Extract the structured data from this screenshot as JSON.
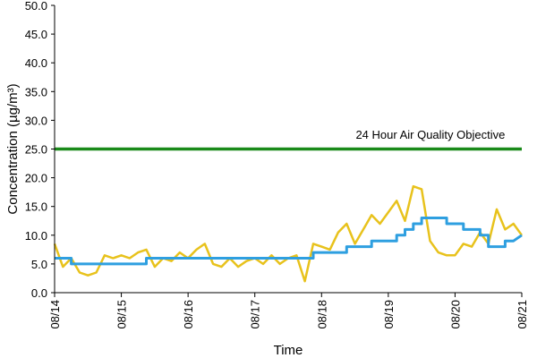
{
  "chart_data": {
    "type": "line",
    "title": "",
    "xlabel": "Time",
    "ylabel": "Concentration (µg/m³)",
    "ylim": [
      0,
      50
    ],
    "yticks": [
      "0.0",
      "5.0",
      "10.0",
      "15.0",
      "20.0",
      "25.0",
      "30.0",
      "35.0",
      "40.0",
      "45.0",
      "50.0"
    ],
    "xlim": [
      "08/14",
      "08/21"
    ],
    "xticks": [
      "08/14",
      "08/15",
      "08/16",
      "08/17",
      "08/18",
      "08/19",
      "08/20",
      "08/21"
    ],
    "grid": false,
    "legend": "none",
    "series": [
      {
        "color": "#e8c21c",
        "x": [
          "08/14 00:00",
          "08/14 03:00",
          "08/14 06:00",
          "08/14 09:00",
          "08/14 12:00",
          "08/14 15:00",
          "08/14 18:00",
          "08/14 21:00",
          "08/15 00:00",
          "08/15 03:00",
          "08/15 06:00",
          "08/15 09:00",
          "08/15 12:00",
          "08/15 15:00",
          "08/15 18:00",
          "08/15 21:00",
          "08/16 00:00",
          "08/16 03:00",
          "08/16 06:00",
          "08/16 09:00",
          "08/16 12:00",
          "08/16 15:00",
          "08/16 18:00",
          "08/16 21:00",
          "08/17 00:00",
          "08/17 03:00",
          "08/17 06:00",
          "08/17 09:00",
          "08/17 12:00",
          "08/17 15:00",
          "08/17 18:00",
          "08/17 21:00",
          "08/18 00:00",
          "08/18 03:00",
          "08/18 06:00",
          "08/18 09:00",
          "08/18 12:00",
          "08/18 15:00",
          "08/18 18:00",
          "08/18 21:00",
          "08/19 00:00",
          "08/19 03:00",
          "08/19 06:00",
          "08/19 09:00",
          "08/19 12:00",
          "08/19 15:00",
          "08/19 18:00",
          "08/19 21:00",
          "08/20 00:00",
          "08/20 03:00",
          "08/20 06:00",
          "08/20 09:00",
          "08/20 12:00",
          "08/20 15:00",
          "08/20 18:00",
          "08/20 21:00",
          "08/21 00:00"
        ],
        "values": [
          8.5,
          4.5,
          6.0,
          3.5,
          3.0,
          3.5,
          6.5,
          6.0,
          6.5,
          6.0,
          7.0,
          7.5,
          4.5,
          6.0,
          5.5,
          7.0,
          6.0,
          7.5,
          8.5,
          5.0,
          4.5,
          6.0,
          4.5,
          5.5,
          6.0,
          5.0,
          6.5,
          5.0,
          6.0,
          6.5,
          2.0,
          8.5,
          8.0,
          7.5,
          10.5,
          12.0,
          8.5,
          11.0,
          13.5,
          12.0,
          14.0,
          16.0,
          12.5,
          18.5,
          18.0,
          9.0,
          7.0,
          6.5,
          6.5,
          8.5,
          8.0,
          10.5,
          8.5,
          14.5,
          11.0,
          12.0,
          10.0
        ]
      },
      {
        "color": "#2e9fe0",
        "x": [
          "08/14 00:00",
          "08/14 06:00",
          "08/14 06:00",
          "08/15 09:00",
          "08/15 09:00",
          "08/17 21:00",
          "08/17 21:00",
          "08/18 09:00",
          "08/18 09:00",
          "08/18 18:00",
          "08/18 18:00",
          "08/19 03:00",
          "08/19 03:00",
          "08/19 06:00",
          "08/19 06:00",
          "08/19 09:00",
          "08/19 09:00",
          "08/19 12:00",
          "08/19 12:00",
          "08/19 21:00",
          "08/19 21:00",
          "08/20 03:00",
          "08/20 03:00",
          "08/20 09:00",
          "08/20 09:00",
          "08/20 12:00",
          "08/20 12:00",
          "08/20 18:00",
          "08/20 18:00",
          "08/20 21:00",
          "08/21 00:00"
        ],
        "values": [
          6,
          6,
          5,
          5,
          6,
          6,
          7,
          7,
          8,
          8,
          9,
          9,
          10,
          10,
          11,
          11,
          12,
          12,
          13,
          13,
          12,
          12,
          11,
          11,
          10,
          10,
          8,
          8,
          9,
          9,
          10
        ]
      },
      {
        "name": "24 Hour Air Quality Objective",
        "color": "#1a8a1a",
        "x": [
          "08/14 00:00",
          "08/21 00:00"
        ],
        "values": [
          25,
          25
        ]
      }
    ],
    "annotations": [
      {
        "text": "24 Hour Air Quality Objective",
        "y": 26.5,
        "anchor": "08/20 18:00"
      }
    ]
  }
}
